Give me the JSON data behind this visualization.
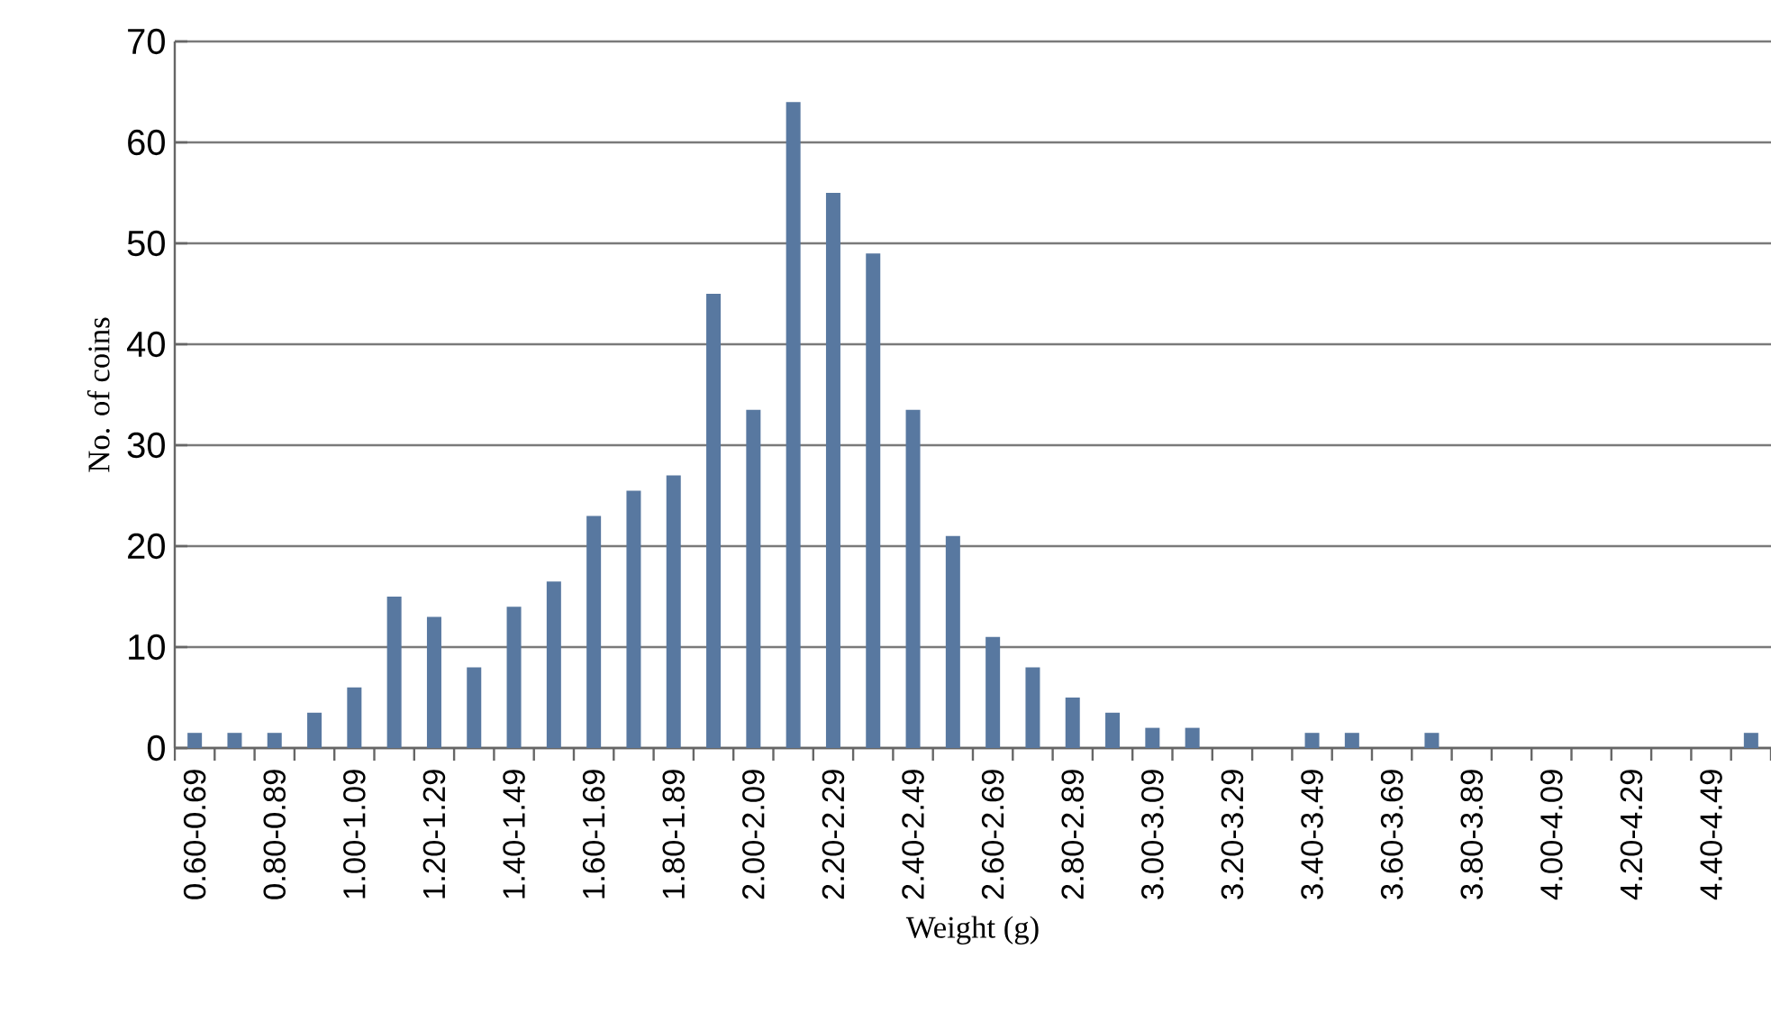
{
  "chart_data": {
    "type": "bar",
    "xlabel": "Weight (g)",
    "ylabel": "No. of coins",
    "categories": [
      "0.60-0.69",
      null,
      "0.80-0.89",
      null,
      "1.00-1.09",
      null,
      "1.20-1.29",
      null,
      "1.40-1.49",
      null,
      "1.60-1.69",
      null,
      "1.80-1.89",
      null,
      "2.00-2.09",
      null,
      "2.20-2.29",
      null,
      "2.40-2.49",
      null,
      "2.60-2.69",
      null,
      "2.80-2.89",
      null,
      "3.00-3.09",
      null,
      "3.20-3.29",
      null,
      "3.40-3.49",
      null,
      "3.60-3.69",
      null,
      "3.80-3.89",
      null,
      "4.00-4.09",
      null,
      "4.20-4.29",
      null,
      "4.40-4.49",
      null
    ],
    "values": [
      1.5,
      1.5,
      1.5,
      3.5,
      6,
      15,
      13,
      8,
      14,
      16.5,
      23,
      25.5,
      27,
      45,
      33.5,
      64,
      55,
      49,
      33.5,
      21,
      11,
      8,
      5,
      3.5,
      2,
      2,
      0,
      0,
      1.5,
      1.5,
      0,
      1.5,
      0,
      0,
      0,
      0,
      0,
      0,
      0,
      1.5
    ],
    "color": "#5878a0",
    "ylim": [
      0,
      70
    ],
    "yticks": [
      0,
      10,
      20,
      30,
      40,
      50,
      60,
      70
    ],
    "grid": "y"
  }
}
